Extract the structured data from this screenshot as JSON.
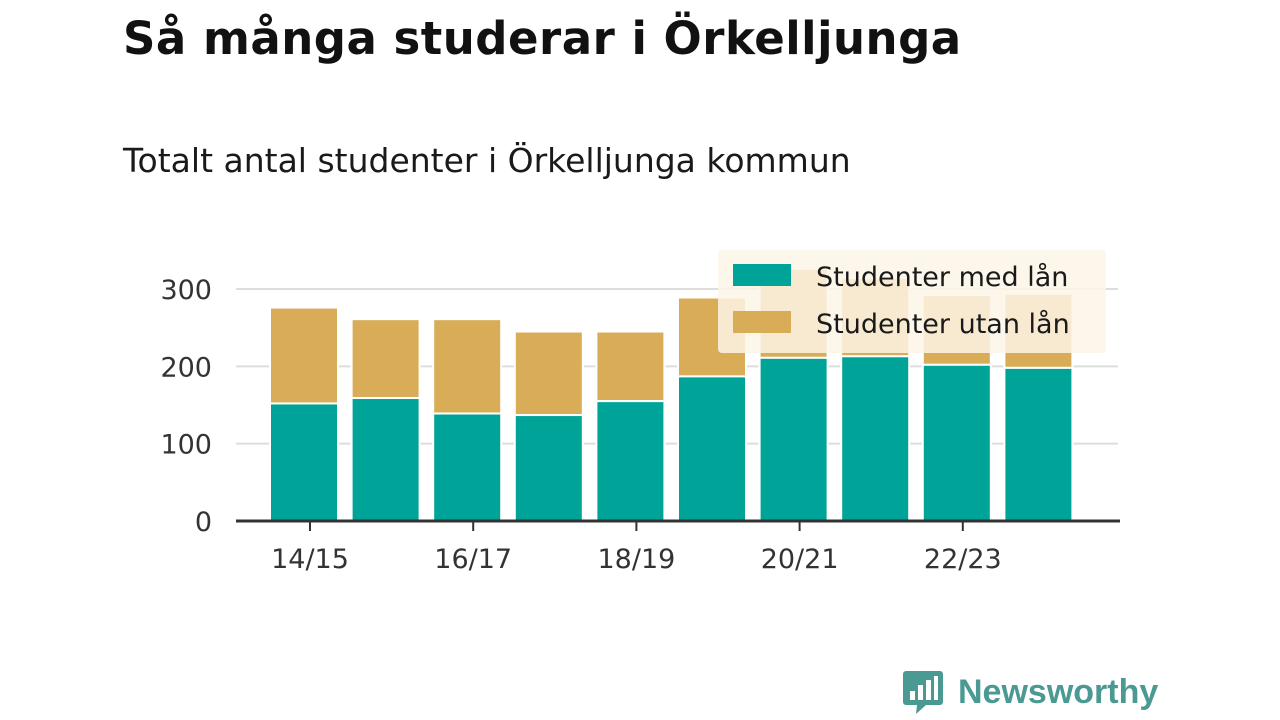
{
  "title": "Så många studerar i Örkelljunga",
  "subtitle": "Totalt antal studenter i Örkelljunga kommun",
  "brand": {
    "name": "Newsworthy",
    "icon": "newsworthy-logo-icon",
    "color": "#4a9a93"
  },
  "colors": {
    "with_loan": "#00a398",
    "without_loan": "#d9ad58",
    "grid": "#dddddd",
    "axis": "#333333",
    "legend_bg": "#fdf5e6"
  },
  "chart_data": {
    "type": "bar",
    "stacked": true,
    "categories": [
      "14/15",
      "15/16",
      "16/17",
      "17/18",
      "18/19",
      "19/20",
      "20/21",
      "21/22",
      "22/23",
      "23/24"
    ],
    "x_tick_labels": [
      "14/15",
      "16/17",
      "18/19",
      "20/21",
      "22/23"
    ],
    "series": [
      {
        "name": "Studenter med lån",
        "values": [
          152,
          159,
          139,
          137,
          155,
          187,
          211,
          213,
          202,
          198
        ]
      },
      {
        "name": "Studenter utan lån",
        "values": [
          124,
          102,
          122,
          108,
          90,
          102,
          115,
          101,
          90,
          96
        ]
      }
    ],
    "ylim": [
      0,
      300
    ],
    "yticks": [
      0,
      100,
      200,
      300
    ],
    "xlabel": "",
    "ylabel": "",
    "grid": true,
    "legend_position": "top-right"
  }
}
